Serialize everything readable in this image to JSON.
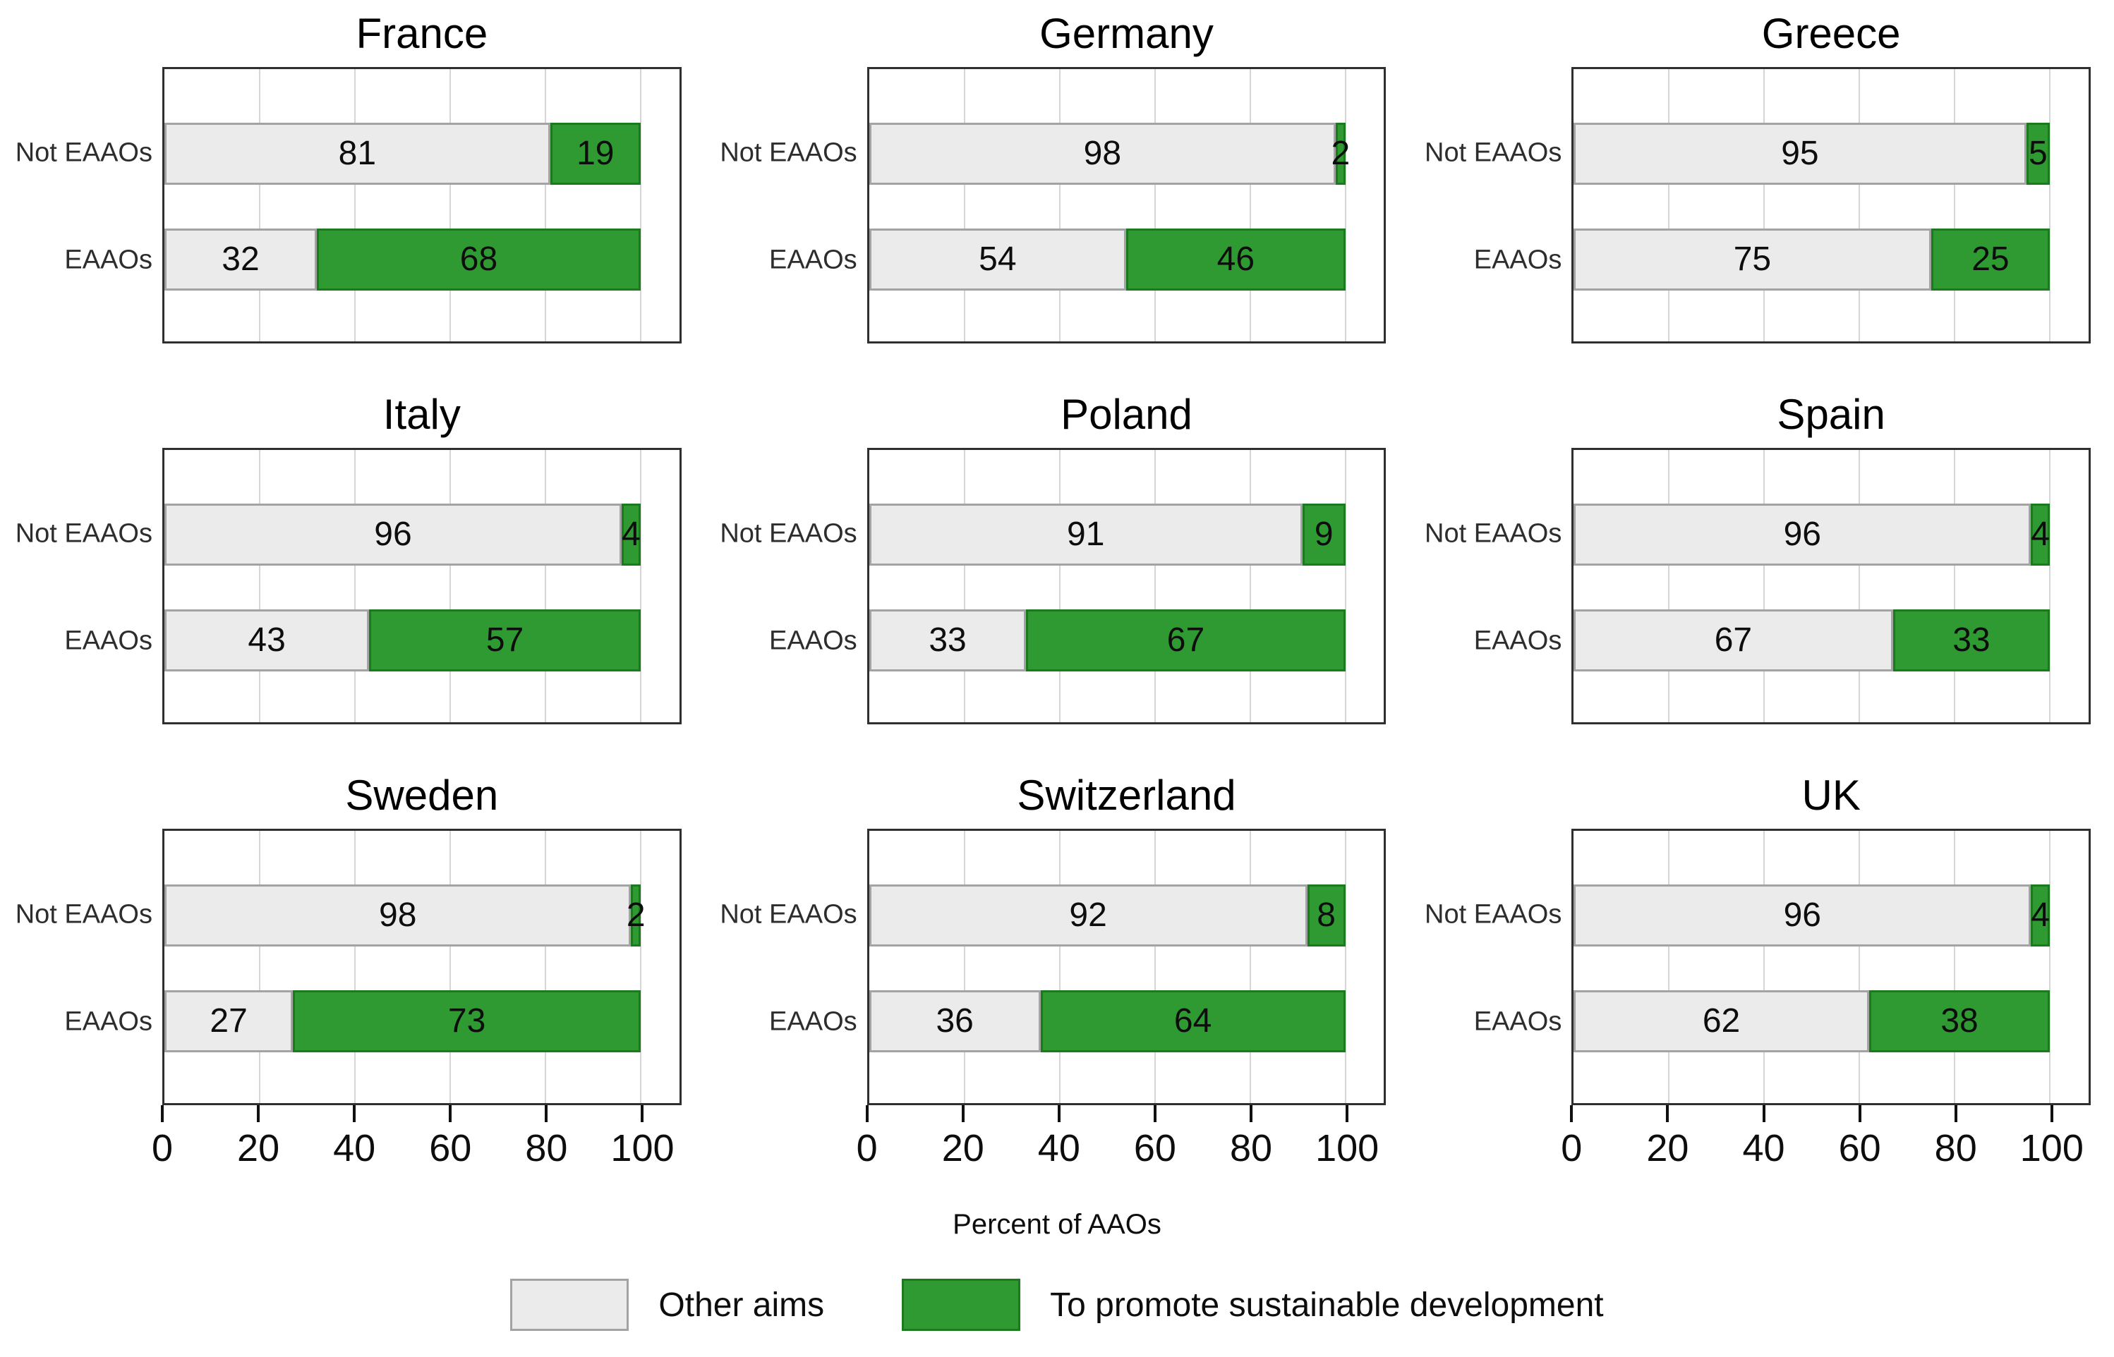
{
  "chart_data": {
    "type": "bar",
    "orientation": "horizontal",
    "stacked": true,
    "facet_layout": "3x3 grid, shared x axis on bottom row only",
    "xlabel": "Percent of AAOs",
    "xlim": [
      0,
      100
    ],
    "x_ticks": [
      0,
      20,
      40,
      60,
      80,
      100
    ],
    "grid": "vertical major gridlines only",
    "legend_position": "bottom",
    "categories": [
      "Not EAAOs",
      "EAAOs"
    ],
    "series": [
      {
        "name": "Other aims",
        "fill": "#ebebeb",
        "stroke": "#a3a3a3"
      },
      {
        "name": "To promote sustainable development",
        "fill": "#2f9a32",
        "stroke": "#1b7a1e"
      }
    ],
    "facets": [
      {
        "title": "France",
        "bars": [
          {
            "category": "Not EAAOs",
            "values": [
              81,
              19
            ]
          },
          {
            "category": "EAAOs",
            "values": [
              32,
              68
            ]
          }
        ]
      },
      {
        "title": "Germany",
        "bars": [
          {
            "category": "Not EAAOs",
            "values": [
              98,
              2
            ]
          },
          {
            "category": "EAAOs",
            "values": [
              54,
              46
            ]
          }
        ]
      },
      {
        "title": "Greece",
        "bars": [
          {
            "category": "Not EAAOs",
            "values": [
              95,
              5
            ]
          },
          {
            "category": "EAAOs",
            "values": [
              75,
              25
            ]
          }
        ]
      },
      {
        "title": "Italy",
        "bars": [
          {
            "category": "Not EAAOs",
            "values": [
              96,
              4
            ]
          },
          {
            "category": "EAAOs",
            "values": [
              43,
              57
            ]
          }
        ]
      },
      {
        "title": "Poland",
        "bars": [
          {
            "category": "Not EAAOs",
            "values": [
              91,
              9
            ]
          },
          {
            "category": "EAAOs",
            "values": [
              33,
              67
            ]
          }
        ]
      },
      {
        "title": "Spain",
        "bars": [
          {
            "category": "Not EAAOs",
            "values": [
              96,
              4
            ]
          },
          {
            "category": "EAAOs",
            "values": [
              67,
              33
            ]
          }
        ]
      },
      {
        "title": "Sweden",
        "bars": [
          {
            "category": "Not EAAOs",
            "values": [
              98,
              2
            ]
          },
          {
            "category": "EAAOs",
            "values": [
              27,
              73
            ]
          }
        ]
      },
      {
        "title": "Switzerland",
        "bars": [
          {
            "category": "Not EAAOs",
            "values": [
              92,
              8
            ]
          },
          {
            "category": "EAAOs",
            "values": [
              36,
              64
            ]
          }
        ]
      },
      {
        "title": "UK",
        "bars": [
          {
            "category": "Not EAAOs",
            "values": [
              96,
              4
            ]
          },
          {
            "category": "EAAOs",
            "values": [
              62,
              38
            ]
          }
        ]
      }
    ]
  },
  "colors": {
    "panel_border": "#2f2f2f",
    "gridline": "#d6d6d6",
    "tick": "#111111",
    "text": "#0d0d0d"
  }
}
